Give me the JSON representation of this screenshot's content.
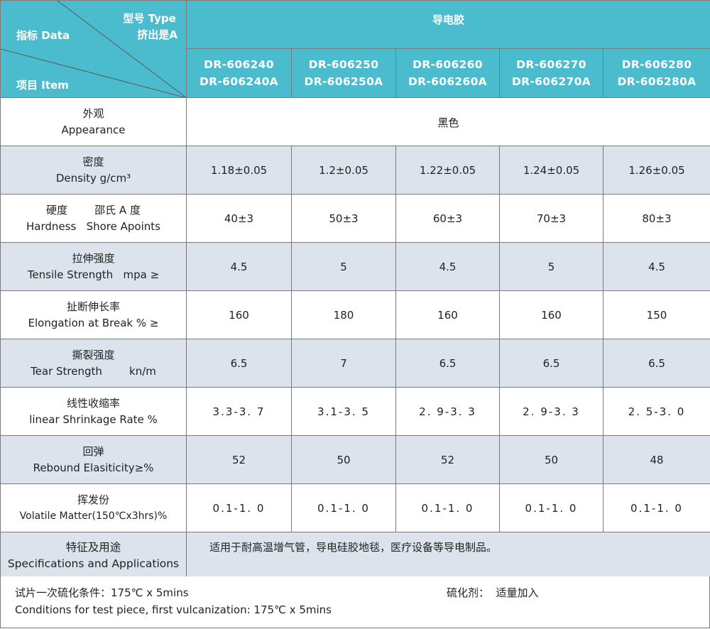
{
  "header": {
    "type_label": "型号 Type",
    "extrude_label": "挤出是A",
    "data_label": "指标 Data",
    "item_label": "项目 Item",
    "product_name": "导电胶",
    "models": [
      {
        "a": "DR-606240",
        "b": "DR-606240A"
      },
      {
        "a": "DR-606250",
        "b": "DR-606250A"
      },
      {
        "a": "DR-606260",
        "b": "DR-606260A"
      },
      {
        "a": "DR-606270",
        "b": "DR-606270A"
      },
      {
        "a": "DR-606280",
        "b": "DR-606280A"
      }
    ]
  },
  "rows": [
    {
      "cn": "外观",
      "en": "Appearance",
      "span": "黑色"
    },
    {
      "cn": "密度",
      "en": "Density  g/cm³",
      "values": [
        "1.18±0.05",
        "1.2±0.05",
        "1.22±0.05",
        "1.24±0.05",
        "1.26±0.05"
      ]
    },
    {
      "cn": "硬度        邵氏 A 度",
      "en": "Hardness   Shore Apoints",
      "values": [
        "40±3",
        "50±3",
        "60±3",
        "70±3",
        "80±3"
      ]
    },
    {
      "cn": "拉伸强度",
      "en": "Tensile Strength   mpa ≥",
      "values": [
        "4.5",
        "5",
        "4.5",
        "5",
        "4.5"
      ]
    },
    {
      "cn": "扯断伸长率",
      "en": "Elongation at Break  % ≥",
      "values": [
        "160",
        "180",
        "160",
        "160",
        "150"
      ]
    },
    {
      "cn": "撕裂强度",
      "en": "Tear Strength        kn/m",
      "values": [
        "6.5",
        "7",
        "6.5",
        "6.5",
        "6.5"
      ]
    },
    {
      "cn": "线性收缩率",
      "en": "linear Shrinkage Rate %",
      "values": [
        "3.3-3. 7",
        "3.1-3. 5",
        "2. 9-3. 3",
        "2. 9-3. 3",
        "2. 5-3. 0"
      ]
    },
    {
      "cn": "回弹",
      "en": "Rebound Elasiticity≥%",
      "values": [
        "52",
        "50",
        "52",
        "50",
        "48"
      ]
    },
    {
      "cn": "挥发份",
      "en": "Volatile Matter(150℃x3hrs)%",
      "values": [
        "0.1-1. 0",
        "0.1-1. 0",
        "0.1-1. 0",
        "0.1-1. 0",
        "0.1-1. 0"
      ]
    },
    {
      "cn": "特征及用途",
      "en": "Specifications and Applications",
      "span": "适用于耐高温增气管，导电硅胶地毯，医疗设备等导电制品。"
    }
  ],
  "footer": {
    "cure_cn": "试片一次硫化条件：175℃ x 5mins",
    "cure_en": "Conditions for test piece, first vulcanization: 175℃ x 5mins",
    "agent": "硫化剂：  适量加入"
  }
}
